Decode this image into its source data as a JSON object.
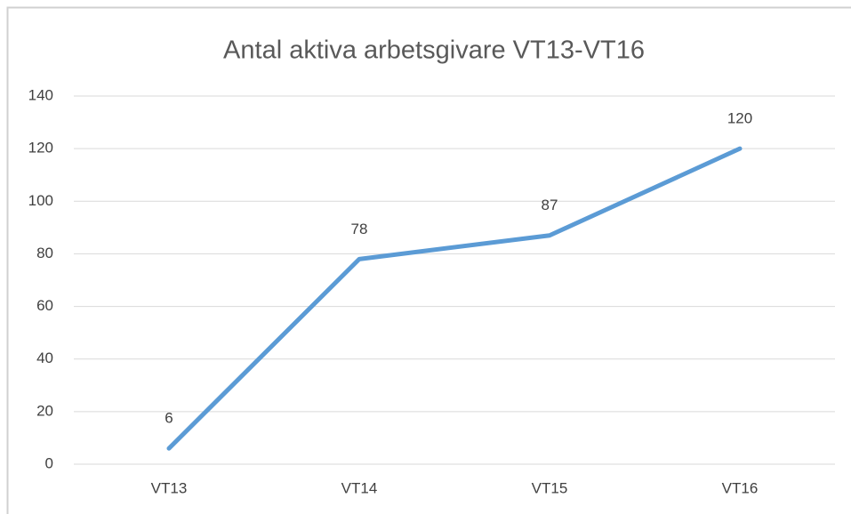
{
  "chart_data": {
    "type": "line",
    "title": "Antal aktiva arbetsgivare VT13-VT16",
    "categories": [
      "VT13",
      "VT14",
      "VT15",
      "VT16"
    ],
    "series": [
      {
        "color": "#5b9bd5",
        "values": [
          6,
          78,
          87,
          120
        ]
      }
    ],
    "ylim": [
      0,
      140
    ],
    "yticks": [
      0,
      20,
      40,
      60,
      80,
      100,
      120,
      140
    ],
    "grid": true
  }
}
